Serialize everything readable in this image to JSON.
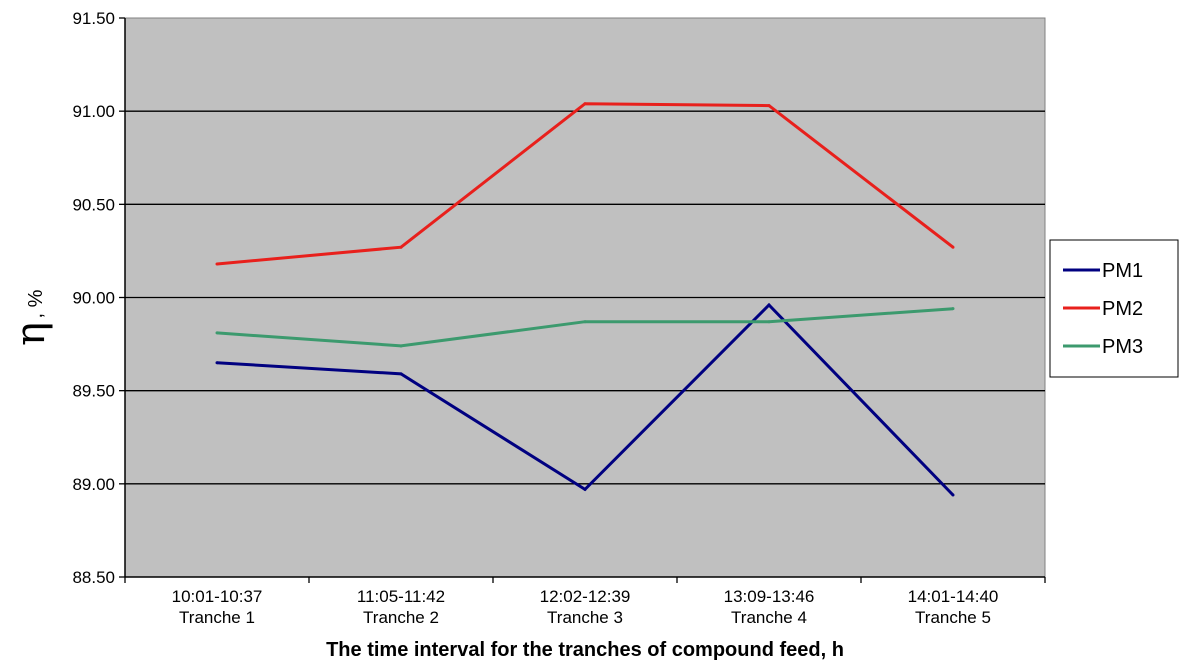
{
  "chart_data": {
    "type": "line",
    "title": "",
    "xlabel": "The time interval for the tranches of compound feed, h",
    "ylabel_symbol": "η",
    "ylabel_unit": ", %",
    "categories": [
      [
        "10:01-10:37",
        "Tranche 1"
      ],
      [
        "11:05-11:42",
        "Tranche 2"
      ],
      [
        "12:02-12:39",
        "Tranche 3"
      ],
      [
        "13:09-13:46",
        "Tranche 4"
      ],
      [
        "14:01-14:40",
        "Tranche 5"
      ]
    ],
    "ylim": [
      88.5,
      91.5
    ],
    "yticks": [
      88.5,
      89.0,
      89.5,
      90.0,
      90.5,
      91.0,
      91.5
    ],
    "ytick_labels": [
      "88.50",
      "89.00",
      "89.50",
      "90.00",
      "90.50",
      "91.00",
      "91.50"
    ],
    "grid": true,
    "plot_background": "#c0c0c0",
    "legend_position": "right",
    "series": [
      {
        "name": "PM1",
        "color": "#000080",
        "values": [
          89.65,
          89.59,
          88.97,
          89.96,
          88.94
        ]
      },
      {
        "name": "PM2",
        "color": "#e8201c",
        "values": [
          90.18,
          90.27,
          91.04,
          91.03,
          90.27
        ]
      },
      {
        "name": "PM3",
        "color": "#3c9a6e",
        "values": [
          89.81,
          89.74,
          89.87,
          89.87,
          89.94
        ]
      }
    ]
  }
}
